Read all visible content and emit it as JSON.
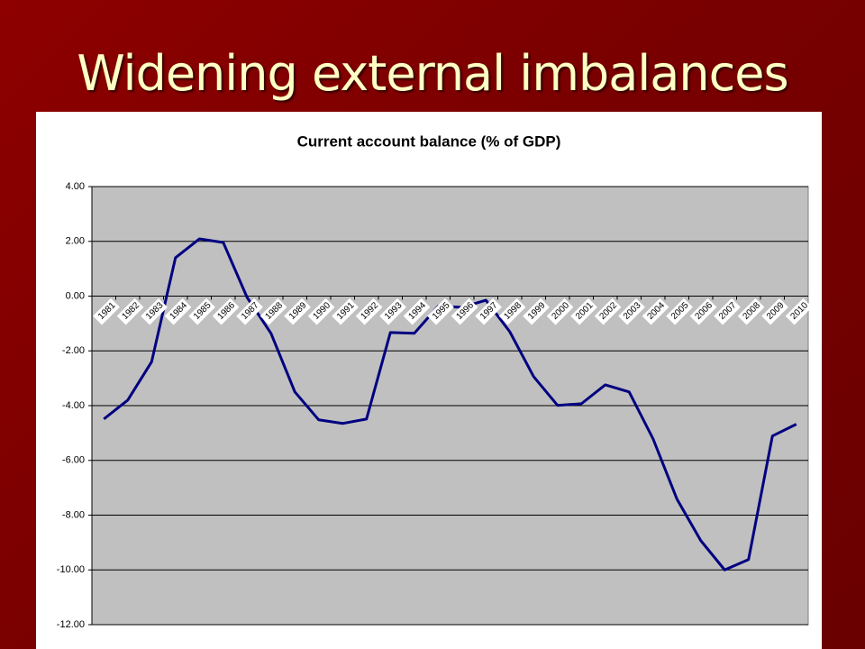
{
  "slide": {
    "title": "Widening external imbalances"
  },
  "chart_data": {
    "type": "line",
    "title": "Current account balance (% of GDP)",
    "categories": [
      "1981",
      "1982",
      "1983",
      "1984",
      "1985",
      "1986",
      "1987",
      "1988",
      "1989",
      "1990",
      "1991",
      "1992",
      "1993",
      "1994",
      "1995",
      "1996",
      "1997",
      "1998",
      "1999",
      "2000",
      "2001",
      "2002",
      "2003",
      "2004",
      "2005",
      "2006",
      "2007",
      "2008",
      "2009",
      "2010"
    ],
    "series": [
      {
        "name": "Current account balance",
        "color": "#000080",
        "values": [
          -4.49,
          -3.8,
          -2.4,
          1.4,
          2.09,
          1.96,
          -0.05,
          -1.36,
          -3.5,
          -4.52,
          -4.65,
          -4.49,
          -1.33,
          -1.36,
          -0.37,
          -0.41,
          -0.15,
          -1.3,
          -2.94,
          -3.99,
          -3.93,
          -3.24,
          -3.5,
          -5.21,
          -7.41,
          -8.93,
          -10.0,
          -9.62,
          -5.11,
          -4.68
        ]
      }
    ],
    "ylim": [
      -12,
      4
    ],
    "yticks": [
      {
        "value": -12,
        "label": "-12.00"
      },
      {
        "value": -10,
        "label": "-10.00"
      },
      {
        "value": -8,
        "label": "-8.00"
      },
      {
        "value": -6,
        "label": "-6.00"
      },
      {
        "value": -4,
        "label": "-4.00"
      },
      {
        "value": -2,
        "label": "-2.00"
      },
      {
        "value": 0,
        "label": "0.00"
      },
      {
        "value": 2,
        "label": "2.00"
      },
      {
        "value": 4,
        "label": "4.00"
      }
    ],
    "grid": true
  }
}
